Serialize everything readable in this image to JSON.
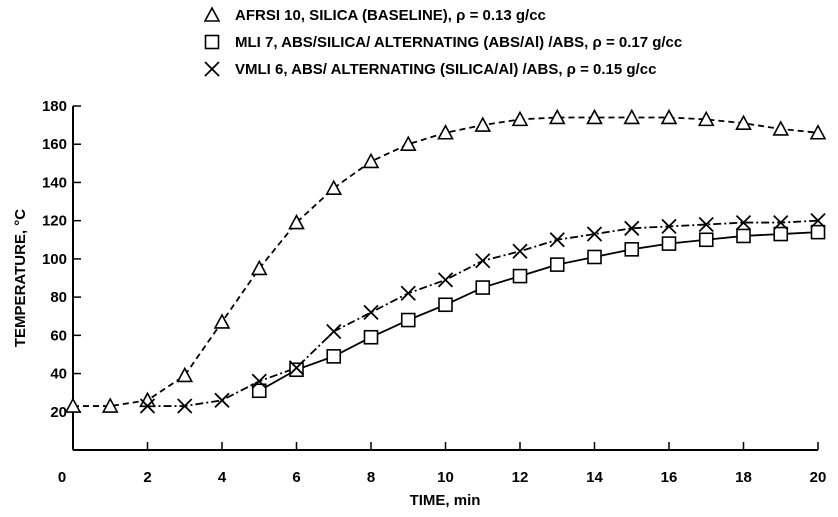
{
  "chart_data": {
    "type": "line",
    "xlabel": "TIME, min",
    "ylabel": "TEMPERATURE, °C",
    "xlim": [
      0,
      20
    ],
    "ylim": [
      0,
      180
    ],
    "x_ticks": [
      0,
      2,
      4,
      6,
      8,
      10,
      12,
      14,
      16,
      18,
      20
    ],
    "y_ticks": [
      20,
      40,
      60,
      80,
      100,
      120,
      140,
      160,
      180
    ],
    "grid": false,
    "legend_position": "top",
    "series": [
      {
        "name": "AFRSI 10, SILICA (BASELINE), ρ = 0.13 g/cc",
        "marker": "triangle",
        "line_style": "dashed",
        "x": [
          0,
          1,
          2,
          3,
          4,
          5,
          6,
          7,
          8,
          9,
          10,
          11,
          12,
          13,
          14,
          15,
          16,
          17,
          18,
          19,
          20
        ],
        "y": [
          23,
          23,
          26,
          39,
          67,
          95,
          119,
          137,
          151,
          160,
          166,
          170,
          173,
          174,
          174,
          174,
          174,
          173,
          171,
          168,
          166
        ]
      },
      {
        "name": "MLI 7, ABS/SILICA/ ALTERNATING (ABS/Al) /ABS, ρ = 0.17 g/cc",
        "marker": "square",
        "line_style": "solid",
        "x": [
          5,
          6,
          7,
          8,
          9,
          10,
          11,
          12,
          13,
          14,
          15,
          16,
          17,
          18,
          19,
          20
        ],
        "y": [
          31,
          42,
          49,
          59,
          68,
          76,
          85,
          91,
          97,
          101,
          105,
          108,
          110,
          112,
          113,
          114
        ]
      },
      {
        "name": "VMLI 6, ABS/ ALTERNATING (SILICA/Al) /ABS, ρ = 0.15 g/cc",
        "marker": "x",
        "line_style": "dash-dot",
        "x": [
          2,
          3,
          4,
          5,
          6,
          7,
          8,
          9,
          10,
          11,
          12,
          13,
          14,
          15,
          16,
          17,
          18,
          19,
          20
        ],
        "y": [
          23,
          23,
          26,
          36,
          43,
          62,
          72,
          82,
          89,
          99,
          104,
          110,
          113,
          116,
          117,
          118,
          119,
          119,
          120
        ]
      }
    ]
  }
}
